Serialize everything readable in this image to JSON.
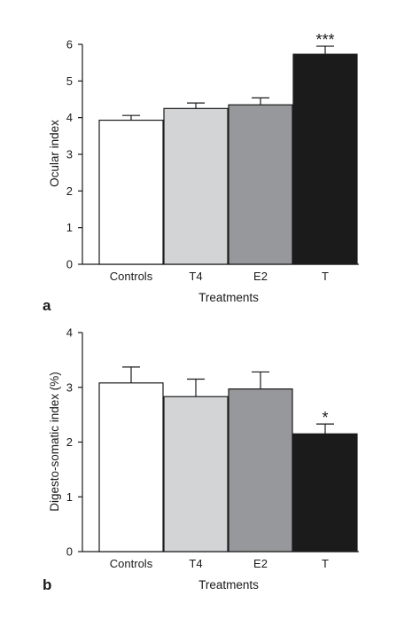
{
  "chart_data": [
    {
      "panel": "a",
      "type": "bar",
      "categories": [
        "Controls",
        "T4",
        "E2",
        "T"
      ],
      "values": [
        3.93,
        4.25,
        4.35,
        5.73
      ],
      "errors": [
        0.13,
        0.15,
        0.19,
        0.22
      ],
      "significance": [
        "",
        "",
        "",
        "***"
      ],
      "colors": [
        "#ffffff",
        "#d3d4d6",
        "#97989b",
        "#1b1b1b"
      ],
      "xlabel": "Treatments",
      "ylabel": "Ocular index",
      "ylim": [
        0,
        6
      ],
      "yticks": [
        "0",
        "1",
        "2",
        "3",
        "4",
        "5",
        "6"
      ],
      "grid": false
    },
    {
      "panel": "b",
      "type": "bar",
      "categories": [
        "Controls",
        "T4",
        "E2",
        "T"
      ],
      "values": [
        3.08,
        2.83,
        2.97,
        2.15
      ],
      "errors": [
        0.29,
        0.32,
        0.31,
        0.18
      ],
      "significance": [
        "",
        "",
        "",
        "*"
      ],
      "colors": [
        "#ffffff",
        "#d3d4d6",
        "#97989b",
        "#1b1b1b"
      ],
      "xlabel": "Treatments",
      "ylabel": "Digesto-somatic index (%)",
      "ylim": [
        0,
        4
      ],
      "yticks": [
        "0",
        "1",
        "2",
        "3",
        "4"
      ],
      "grid": false
    }
  ]
}
